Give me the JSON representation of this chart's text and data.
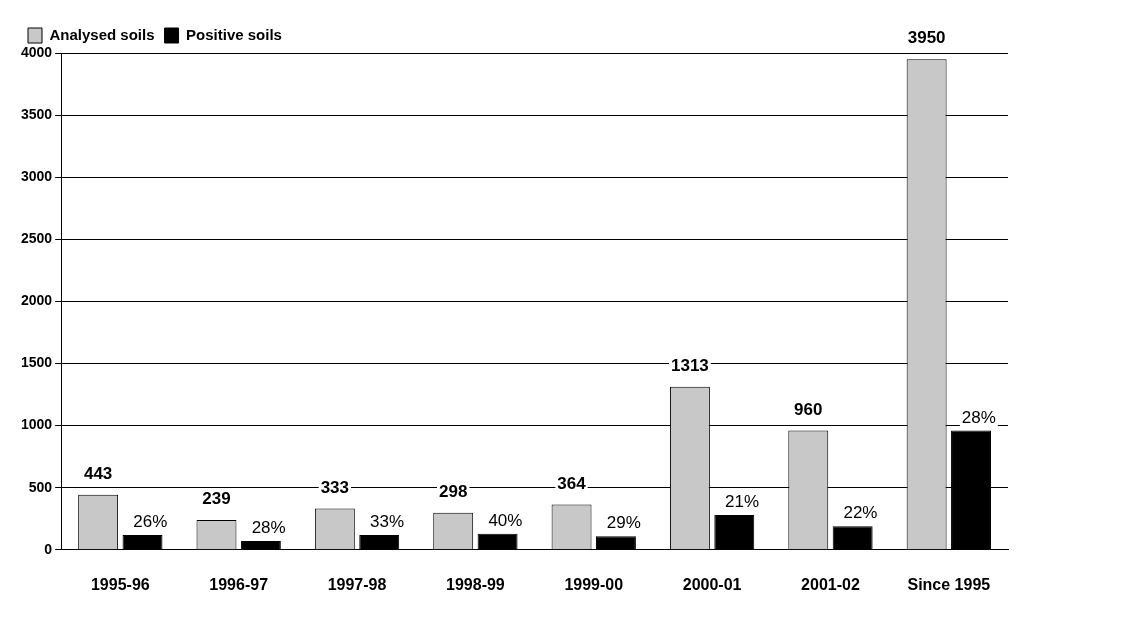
{
  "chart_data": {
    "type": "bar",
    "categories": [
      "1995-96",
      "1996-97",
      "1997-98",
      "1998-99",
      "1999-00",
      "2000-01",
      "2001-02",
      "Since 1995"
    ],
    "series": [
      {
        "name": "Analysed soils",
        "color": "#c8c8c8",
        "values": [
          443,
          239,
          333,
          298,
          364,
          1313,
          960,
          3950
        ],
        "value_labels": [
          "443",
          "239",
          "333",
          "298",
          "364",
          "1313",
          "960",
          "3950"
        ]
      },
      {
        "name": "Positive soils",
        "color": "#000000",
        "values": [
          120,
          70,
          120,
          130,
          110,
          280,
          190,
          960
        ]
      }
    ],
    "annotations": [
      {
        "text": "26%",
        "x": "1995-96",
        "y": 120
      },
      {
        "text": "28%",
        "x": "1996-97",
        "y": 70
      },
      {
        "text": "33%",
        "x": "1997-98",
        "y": 120
      },
      {
        "text": "40%",
        "x": "1998-99",
        "y": 130
      },
      {
        "text": "29%",
        "x": "1999-00",
        "y": 110
      },
      {
        "text": "21%",
        "x": "2000-01",
        "y": 280
      },
      {
        "text": "22%",
        "x": "2001-02",
        "y": 190
      },
      {
        "text": "28%",
        "x": "Since 1995",
        "y": 960
      }
    ],
    "ylim": [
      0,
      4000
    ],
    "yticks": [
      0,
      500,
      1000,
      1500,
      2000,
      2500,
      3000,
      3500,
      4000
    ],
    "grid": "y",
    "legend": "top left"
  }
}
